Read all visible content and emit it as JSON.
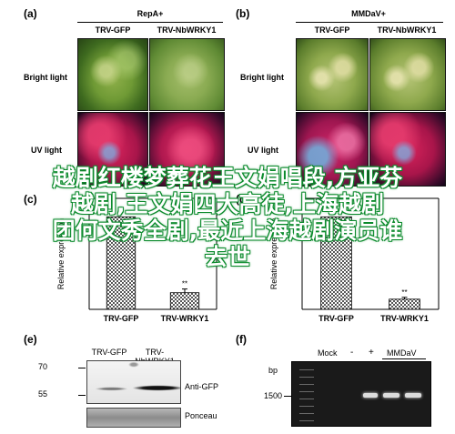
{
  "panel_a": {
    "label": "(a)",
    "title": "RepA+",
    "col1": "TRV-GFP",
    "col2": "TRV-NbWRKY1",
    "row1": "Bright light",
    "row2": "UV light"
  },
  "panel_b": {
    "label": "(b)",
    "title": "MMDaV+",
    "col1": "TRV-GFP",
    "col2": "TRV-NbWRKY1",
    "row1": "Bright light",
    "row2": "UV light"
  },
  "panel_c": {
    "label": "(c)"
  },
  "panel_d": {
    "label": "(d)"
  },
  "panel_e": {
    "label": "(e)",
    "col1": "TRV-GFP",
    "col2": "TRV-NbWRKY1",
    "marker_70": "70",
    "marker_55": "55",
    "row1": "Anti-GFP",
    "row2": "Ponceau"
  },
  "panel_f": {
    "label": "(f)",
    "bp": "bp",
    "marker": "1500",
    "mock": "Mock",
    "minus": "-",
    "plus": "+",
    "mmdav": "MMDaV"
  },
  "chart_data": [
    {
      "type": "bar",
      "panel": "c",
      "categories": [
        "TRV-GFP",
        "TRV-WRKY1"
      ],
      "values": [
        1.0,
        0.18
      ],
      "errors": [
        0.0,
        0.04
      ],
      "annotations": [
        "",
        "**"
      ],
      "ylabel": "Relative expression",
      "ylim": [
        0,
        1.2
      ],
      "grid": false
    },
    {
      "type": "bar",
      "panel": "d",
      "categories": [
        "TRV-GFP",
        "TRV-WRKY1"
      ],
      "values": [
        1.0,
        0.11
      ],
      "errors": [
        0.0,
        0.02
      ],
      "annotations": [
        "",
        "**"
      ],
      "ylabel": "Relative expression",
      "ylim": [
        0,
        1.2
      ],
      "grid": false
    }
  ],
  "overlay": {
    "line1": "越剧红楼梦葬花王文娟唱段,方亚芬",
    "line2": "越剧,王文娟四大高徒,上海越剧",
    "line3": "团何文秀全剧,最近上海越剧演员谁",
    "line4": "去世"
  }
}
